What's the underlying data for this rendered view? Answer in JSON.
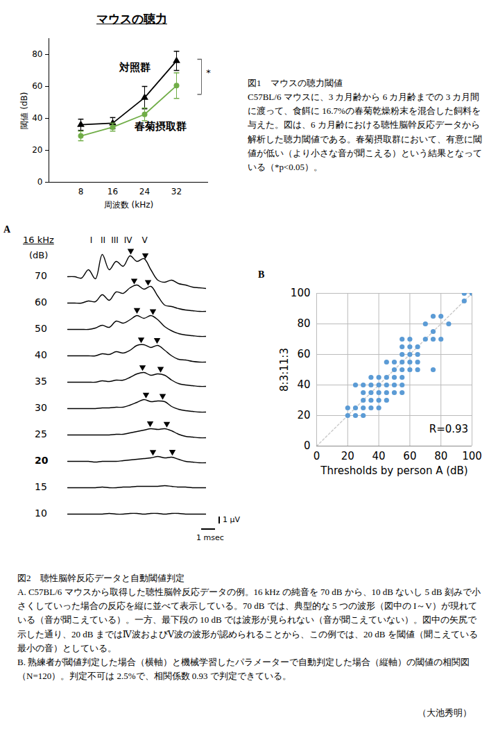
{
  "chart_data": [
    {
      "type": "line",
      "title": "マウスの聴力",
      "categories": [
        8,
        16,
        24,
        32
      ],
      "x_label": "周波数 (kHz)",
      "y_label": "閾値 (dB)",
      "ylim": [
        0,
        90
      ],
      "yticks": [
        0,
        20,
        40,
        60,
        80
      ],
      "series": [
        {
          "name": "対照群",
          "color": "#000000",
          "marker": "triangle",
          "values": [
            36,
            37,
            53,
            76
          ],
          "errors": [
            3.5,
            3.5,
            7,
            6
          ],
          "label_at": {
            "x": 16,
            "y": 72
          }
        },
        {
          "name": "春菊摂取群",
          "color": "#70ad47",
          "marker": "circle",
          "values": [
            29,
            34.5,
            42.5,
            60.5
          ],
          "errors": [
            3,
            2.5,
            4,
            8
          ],
          "label_at": {
            "x": 24,
            "y": 35
          }
        }
      ],
      "significance": {
        "x": 32,
        "y1": 77,
        "y2": 55,
        "label": "*"
      }
    },
    {
      "type": "line",
      "panel": "A",
      "title": "16 kHz",
      "y_label": "(dB)",
      "x": [
        0,
        0.5,
        1,
        1.5,
        2,
        2.5,
        3,
        3.5,
        4,
        4.5,
        5,
        5.5,
        6,
        6.5,
        7,
        7.5,
        8,
        8.5,
        9,
        9.5,
        10
      ],
      "xlim": [
        0,
        10
      ],
      "ylim": [
        -2.5,
        3.5
      ],
      "tick_labels": false,
      "threshold": 20,
      "traces": [
        {
          "level": 70,
          "values": [
            0,
            0,
            -0.2,
            1.0,
            -0.3,
            3.2,
            1.0,
            2.2,
            1.5,
            3.0,
            2.2,
            2.6,
            1.0,
            -0.5,
            -0.8,
            -0.5,
            -1.0,
            -1.2,
            -1.5,
            -1.6,
            -1.7
          ],
          "peaks": [
            4.55,
            5.6
          ]
        },
        {
          "level": 60,
          "values": [
            0,
            0,
            0,
            0.3,
            0.2,
            1.2,
            0.4,
            1.6,
            1.4,
            2.2,
            2.6,
            2.0,
            2.4,
            1.0,
            -0.3,
            -0.5,
            -0.8,
            -1.0,
            -1.1,
            -1.2,
            -1.2
          ],
          "peaks": [
            4.8,
            5.8
          ]
        },
        {
          "level": 50,
          "values": [
            0,
            0,
            0,
            0,
            0.2,
            0.6,
            0.3,
            1.2,
            0.9,
            1.4,
            2.0,
            1.6,
            2.0,
            1.4,
            0.4,
            -0.2,
            -0.6,
            -0.8,
            -0.9,
            -1.0,
            -1.0
          ],
          "peaks": [
            5.0,
            6.15
          ]
        },
        {
          "level": 40,
          "values": [
            0,
            0,
            0,
            0,
            0,
            0.3,
            0.2,
            0.6,
            0.4,
            0.8,
            1.5,
            1.6,
            1.2,
            1.5,
            0.8,
            0.0,
            -0.5,
            -0.6,
            -0.8,
            -0.9,
            -0.9
          ],
          "peaks": [
            5.3,
            6.45
          ]
        },
        {
          "level": 35,
          "values": [
            0,
            0,
            0,
            0,
            0,
            0.2,
            0.1,
            0.3,
            0.3,
            0.7,
            1.2,
            1.4,
            1.0,
            1.2,
            1.0,
            0.3,
            -0.2,
            -0.4,
            -0.5,
            -0.6,
            -0.6
          ],
          "peaks": [
            5.4,
            6.7
          ]
        },
        {
          "level": 30,
          "values": [
            0,
            0,
            0,
            0,
            0,
            0.1,
            0.1,
            0.2,
            0.2,
            0.5,
            0.9,
            1.3,
            1.0,
            1.1,
            1.0,
            0.3,
            -0.1,
            -0.3,
            -0.4,
            -0.5,
            -0.5
          ],
          "peaks": [
            5.65,
            6.85
          ]
        },
        {
          "level": 25,
          "values": [
            0,
            0,
            0,
            0,
            0,
            0,
            0,
            0.1,
            0.1,
            0.3,
            0.5,
            0.7,
            0.9,
            0.8,
            0.9,
            0.6,
            0.1,
            -0.2,
            -0.3,
            -0.4,
            -0.4
          ],
          "peaks": [
            5.95,
            7.15
          ]
        },
        {
          "level": 20,
          "values": [
            0,
            0,
            0,
            0,
            -0.1,
            0,
            0,
            0,
            0.1,
            0.2,
            0.3,
            0.4,
            0.5,
            0.7,
            0.5,
            0.6,
            0.3,
            0.0,
            -0.1,
            -0.2,
            -0.2
          ],
          "peaks": [
            6.15,
            7.55
          ]
        },
        {
          "level": 15,
          "values": [
            0,
            0,
            0,
            0,
            0,
            0.1,
            0,
            0,
            0.1,
            0.1,
            0.2,
            0.2,
            0.2,
            0.2,
            0.3,
            0.2,
            0.1,
            0.1,
            0,
            0,
            0
          ],
          "peaks": []
        },
        {
          "level": 10,
          "values": [
            0,
            0,
            0,
            0,
            0,
            0,
            0.1,
            0,
            0,
            0.1,
            0.1,
            0,
            0.1,
            0.1,
            0,
            0.1,
            0.1,
            0,
            0,
            0,
            0
          ],
          "peaks": []
        }
      ],
      "wave_labels": [
        {
          "label": "I",
          "x": 1.7
        },
        {
          "label": "II",
          "x": 2.55
        },
        {
          "label": "III",
          "x": 3.4
        },
        {
          "label": "IV",
          "x": 4.35
        },
        {
          "label": "V",
          "x": 5.55
        }
      ],
      "scale_bar": {
        "x": 1,
        "x_label": "1 msec",
        "y": 1,
        "y_label": "1 μV"
      }
    },
    {
      "type": "scatter",
      "panel": "B",
      "x_label": "Thresholds by person A (dB)",
      "y_label": "8:3:11:3",
      "x": [
        20,
        20,
        25,
        25,
        25,
        30,
        30,
        30,
        30,
        30,
        35,
        35,
        35,
        35,
        35,
        40,
        40,
        40,
        40,
        40,
        45,
        45,
        45,
        45,
        45,
        50,
        50,
        50,
        50,
        50,
        55,
        55,
        55,
        55,
        55,
        55,
        55,
        55,
        60,
        60,
        60,
        60,
        60,
        65,
        65,
        65,
        65,
        70,
        70,
        75,
        75,
        75,
        75,
        80,
        80,
        85,
        95,
        95,
        100
      ],
      "values": [
        20,
        25,
        20,
        25,
        40,
        20,
        25,
        30,
        35,
        40,
        25,
        30,
        35,
        40,
        45,
        25,
        30,
        35,
        40,
        45,
        30,
        35,
        40,
        45,
        55,
        35,
        40,
        45,
        50,
        55,
        35,
        40,
        45,
        50,
        55,
        60,
        65,
        70,
        50,
        55,
        60,
        65,
        70,
        50,
        55,
        60,
        65,
        70,
        80,
        50,
        70,
        75,
        85,
        70,
        85,
        80,
        95,
        100,
        100
      ],
      "color": "#5b9bd5",
      "xlim": [
        0,
        100
      ],
      "ylim": [
        0,
        100
      ],
      "xticks": [
        0,
        20,
        40,
        60,
        80,
        100
      ],
      "yticks": [
        0,
        20,
        40,
        60,
        80,
        100
      ],
      "grid": true,
      "annotations": [
        {
          "text": "R=0.93",
          "x": 85,
          "y": 11
        }
      ]
    }
  ],
  "captions": {
    "figure1": {
      "title": "図1　マウスの聴力閾値",
      "text": "C57BL/6 マウスに、3 カ月齢から 6 カ月齢までの 3 カ月間に渡って、食餌に 16.7%の春菊乾燥粉末を混合した飼料を与えた。図は、6 カ月齢における聴性脳幹反応データから解析した聴力閾値である。春菊摂取群において、有意に閾値が低い（より小さな音が聞こえる）という結果となっている（*p<0.05）。"
    },
    "figure2": {
      "title": "図2　聴性脳幹反応データと自動閾値判定",
      "paragraphs": [
        "A. C57BL/6 マウスから取得した聴性脳幹反応データの例。16 kHz の純音を 70 dB から、10 dB ないし 5 dB 刻みで小さくしていった場合の反応を縦に並べて表示している。70 dB では、典型的な 5 つの波形（図中の I～V）が現れている（音が聞こえている）。一方、最下段の 10 dB では波形が見られない（音が聞こえていない）。図中の矢尻で示した通り、20 dB まではⅣ波およびⅤ波の波形が認められることから、この例では、20 dB を閾値（聞こえている最小の音）としている。",
        "B. 熟練者が閾値判定した場合（横軸）と機械学習したパラメーターで自動判定した場合（縦軸）の閾値の相関図（N=120）。判定不可は 2.5%で、相関係数 0.93 で判定できている。"
      ]
    }
  },
  "author": "（大池秀明）"
}
